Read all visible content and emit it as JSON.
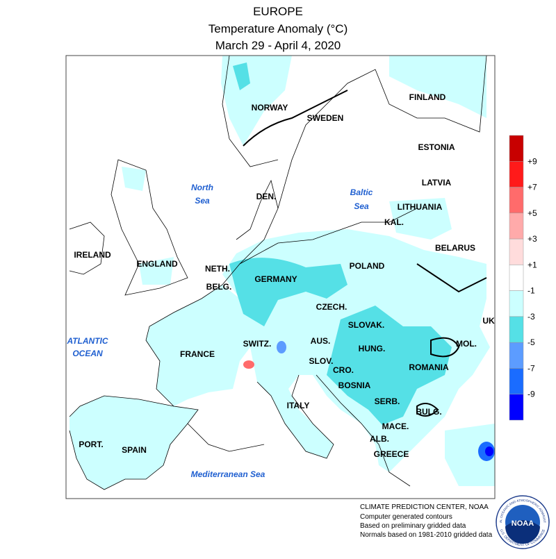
{
  "header": {
    "title": "EUROPE",
    "subtitle": "Temperature Anomaly (°C)",
    "period": "March 29 - April 4, 2020"
  },
  "labels": {
    "countries": [
      "NORWAY",
      "SWEDEN",
      "FINLAND",
      "ESTONIA",
      "LATVIA",
      "LITHUANIA",
      "KAL.",
      "BELARUS",
      "DEN.",
      "IRELAND",
      "ENGLAND",
      "NETH.",
      "BELG.",
      "GERMANY",
      "POLAND",
      "CZECH.",
      "SLOVAK.",
      "UK",
      "AUS.",
      "HUNG.",
      "MOL.",
      "SWITZ.",
      "FRANCE",
      "SLOV.",
      "CRO.",
      "ROMANIA",
      "BOSNIA",
      "SERB.",
      "BULG.",
      "ITALY",
      "MACE.",
      "ALB.",
      "GREECE",
      "PORT.",
      "SPAIN"
    ],
    "seas": {
      "north_sea": [
        "North",
        "Sea"
      ],
      "baltic_sea": [
        "Baltic",
        "Sea"
      ],
      "atlantic": [
        "ATLANTIC",
        "OCEAN"
      ],
      "mediterranean": "Mediterranean Sea"
    }
  },
  "legend": {
    "colors": [
      "#c80000",
      "#ff1a1a",
      "#ff6b6b",
      "#ffaaaa",
      "#ffdcdc",
      "#ffffff",
      "#ccffff",
      "#55e0e6",
      "#5c9cff",
      "#1a6cff",
      "#0000ff"
    ],
    "labels": [
      "+9",
      "+7",
      "+5",
      "+3",
      "+1",
      "-1",
      "-3",
      "-5",
      "-7",
      "-9"
    ]
  },
  "footer": [
    "CLIMATE PREDICTION CENTER, NOAA",
    "Computer generated contours",
    "Based on preliminary gridded data",
    "Normals based on 1981-2010 gridded data"
  ],
  "logo": {
    "name": "NOAA",
    "top": "NATIONAL OCEANIC AND ATMOSPHERIC ADMINISTRATION",
    "bottom": "U.S. DEPARTMENT OF COMMERCE"
  }
}
